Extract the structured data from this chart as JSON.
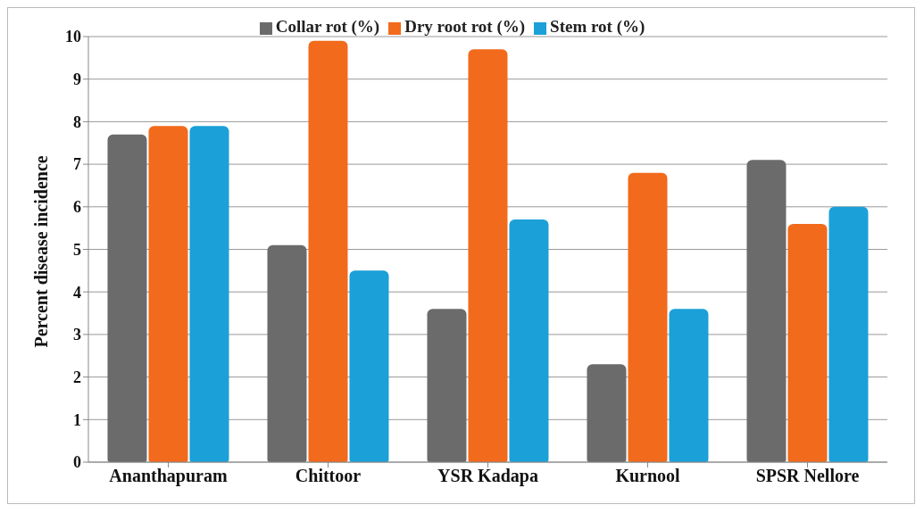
{
  "chart_data": {
    "type": "bar",
    "ylabel": "Percent disease incidence",
    "categories": [
      "Ananthapuram",
      "Chittoor",
      "YSR Kadapa",
      "Kurnool",
      "SPSR Nellore"
    ],
    "series": [
      {
        "name": "Collar rot (%)",
        "color": "#6b6b6b",
        "values": [
          7.7,
          5.1,
          3.6,
          2.3,
          7.1
        ]
      },
      {
        "name": "Dry root rot (%)",
        "color": "#f26a1b",
        "values": [
          7.9,
          9.9,
          9.7,
          6.8,
          5.6
        ]
      },
      {
        "name": "Stem rot (%)",
        "color": "#1ba0d8",
        "values": [
          7.9,
          4.5,
          5.7,
          3.6,
          6.0
        ]
      }
    ],
    "ylim": [
      0,
      10
    ],
    "yticks": [
      0,
      1,
      2,
      3,
      4,
      5,
      6,
      7,
      8,
      9,
      10
    ],
    "grid": "y",
    "legend": "top"
  }
}
